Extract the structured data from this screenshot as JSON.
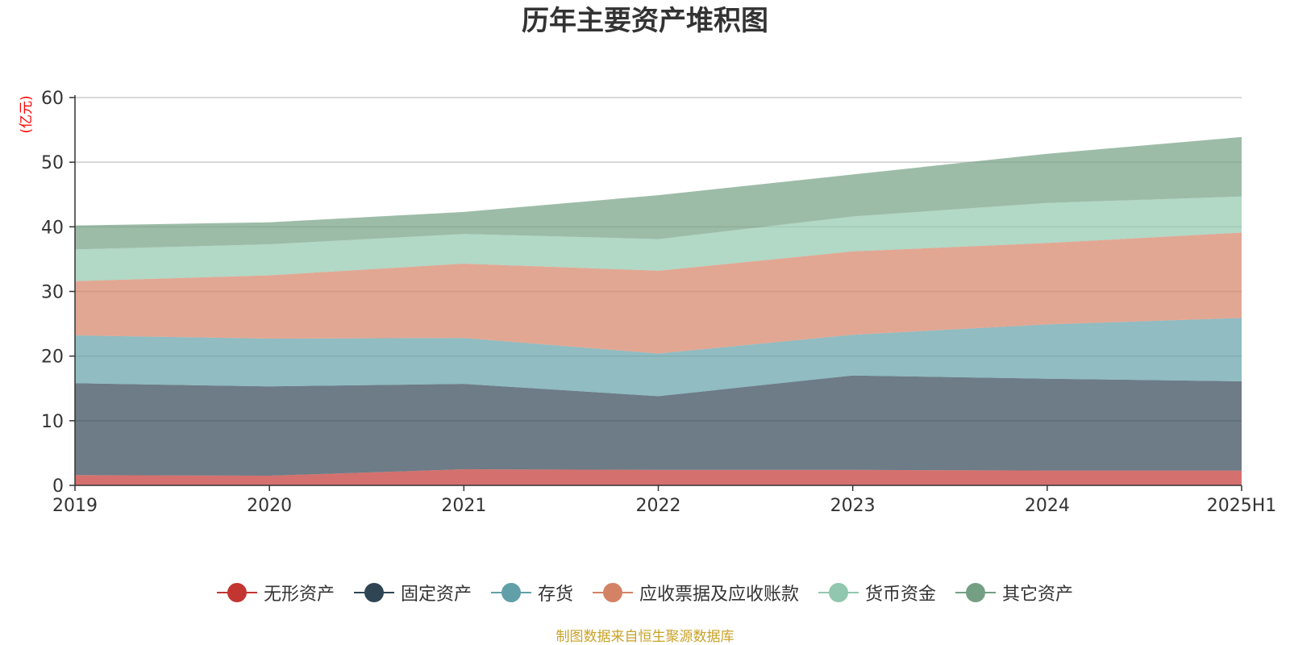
{
  "chart_data": {
    "type": "area",
    "stacked": true,
    "title": "历年主要资产堆积图",
    "ylabel": "亿元",
    "ylim": [
      0,
      60
    ],
    "yticks": [
      0,
      10,
      20,
      30,
      40,
      50,
      60
    ],
    "grid": true,
    "legend_position": "bottom",
    "categories": [
      "2019",
      "2020",
      "2021",
      "2022",
      "2023",
      "2024",
      "2025H1"
    ],
    "series": [
      {
        "name": "无形资产",
        "color": "#c23531",
        "values": [
          1.6,
          1.5,
          2.5,
          2.4,
          2.4,
          2.3,
          2.3
        ]
      },
      {
        "name": "固定资产",
        "color": "#2f4554",
        "values": [
          14.2,
          13.8,
          13.2,
          11.4,
          14.6,
          14.2,
          13.8
        ]
      },
      {
        "name": "存货",
        "color": "#61a0a8",
        "values": [
          7.4,
          7.4,
          7.1,
          6.6,
          6.3,
          8.4,
          9.8
        ]
      },
      {
        "name": "应收票据及应收账款",
        "color": "#d48265",
        "values": [
          8.4,
          9.8,
          11.5,
          12.8,
          12.9,
          12.6,
          13.2
        ]
      },
      {
        "name": "货币资金",
        "color": "#91c7ae",
        "values": [
          4.9,
          4.8,
          4.6,
          4.9,
          5.4,
          6.2,
          5.6
        ]
      },
      {
        "name": "其它资产",
        "color": "#749f83",
        "values": [
          3.7,
          3.4,
          3.4,
          6.8,
          6.5,
          7.6,
          9.2
        ]
      }
    ]
  },
  "source_note": "制图数据来自恒生聚源数据库"
}
